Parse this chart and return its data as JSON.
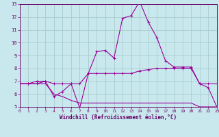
{
  "bg_color": "#c8e8ee",
  "grid_color": "#aacccc",
  "line_color": "#990099",
  "x_min": 0,
  "x_max": 23,
  "y_min": 5,
  "y_max": 13,
  "xlabel": "Windchill (Refroidissement éolien,°C)",
  "x_ticks": [
    0,
    1,
    2,
    3,
    4,
    5,
    6,
    7,
    8,
    9,
    10,
    11,
    12,
    13,
    14,
    15,
    16,
    17,
    18,
    19,
    20,
    21,
    22,
    23
  ],
  "y_ticks": [
    5,
    6,
    7,
    8,
    9,
    10,
    11,
    12,
    13
  ],
  "series1_x": [
    0,
    1,
    2,
    3,
    4,
    5,
    6,
    7,
    8,
    9,
    10,
    11,
    12,
    13,
    14,
    15,
    16,
    17,
    18,
    19,
    20,
    21,
    22,
    23
  ],
  "series1_y": [
    6.8,
    6.8,
    7.0,
    7.0,
    5.8,
    6.2,
    6.8,
    4.9,
    7.6,
    9.3,
    9.4,
    8.8,
    11.9,
    12.1,
    13.2,
    11.6,
    10.4,
    8.6,
    8.1,
    8.1,
    8.1,
    6.8,
    6.5,
    5.0
  ],
  "series2_x": [
    0,
    1,
    2,
    3,
    4,
    5,
    6,
    7,
    8,
    9,
    10,
    11,
    12,
    13,
    14,
    15,
    16,
    17,
    18,
    19,
    20,
    21,
    22,
    23
  ],
  "series2_y": [
    6.8,
    6.8,
    6.8,
    7.0,
    6.8,
    6.8,
    6.8,
    6.8,
    7.6,
    7.6,
    7.6,
    7.6,
    7.6,
    7.6,
    7.8,
    7.9,
    8.0,
    8.0,
    8.0,
    8.0,
    8.0,
    6.8,
    6.8,
    6.8
  ],
  "series3_x": [
    0,
    1,
    2,
    3,
    4,
    5,
    6,
    7,
    8,
    9,
    10,
    11,
    12,
    13,
    14,
    15,
    16,
    17,
    18,
    19,
    20,
    21,
    22,
    23
  ],
  "series3_y": [
    6.8,
    6.8,
    6.8,
    6.8,
    6.0,
    5.8,
    5.5,
    5.3,
    5.3,
    5.3,
    5.3,
    5.3,
    5.3,
    5.3,
    5.3,
    5.3,
    5.3,
    5.3,
    5.3,
    5.3,
    5.3,
    5.0,
    5.0,
    5.0
  ]
}
